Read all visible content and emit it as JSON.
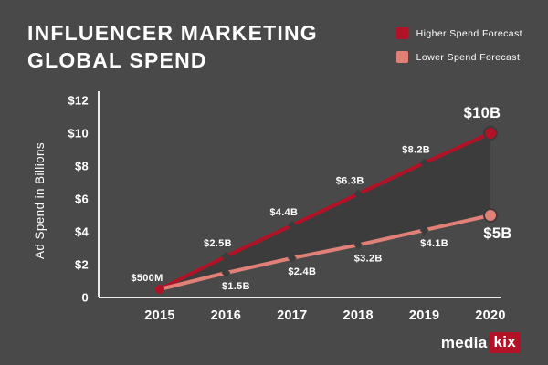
{
  "title_line1": "INFLUENCER MARKETING",
  "title_line2": "GLOBAL SPEND",
  "legend": {
    "items": [
      {
        "label": "Higher Spend Forecast",
        "color": "#b11226"
      },
      {
        "label": "Lower Spend Forecast",
        "color": "#e08076"
      }
    ]
  },
  "chart_data": {
    "type": "line",
    "title": "Influencer Marketing Global Spend",
    "categories": [
      "2015",
      "2016",
      "2017",
      "2018",
      "2019",
      "2020"
    ],
    "series": [
      {
        "name": "Higher Spend Forecast",
        "color": "#b11226",
        "values": [
          0.5,
          2.5,
          4.4,
          6.3,
          8.2,
          10
        ],
        "labels": [
          "$500M",
          "$2.5B",
          "$4.4B",
          "$6.3B",
          "$8.2B",
          "$10B"
        ]
      },
      {
        "name": "Lower Spend Forecast",
        "color": "#e08076",
        "values": [
          0.5,
          1.5,
          2.4,
          3.2,
          4.1,
          5
        ],
        "labels": [
          "",
          "$1.5B",
          "$2.4B",
          "$3.2B",
          "$4.1B",
          "$5B"
        ]
      }
    ],
    "xlabel": "",
    "ylabel": "Ad Spend in Billions",
    "ylim": [
      0,
      12
    ],
    "yticks": [
      0,
      2,
      4,
      6,
      8,
      10,
      12
    ],
    "ytick_labels": [
      "0",
      "$2",
      "$4",
      "$6",
      "$8",
      "$10",
      "$12"
    ],
    "grid": false,
    "legend_position": "top-right",
    "fill_between_series": true,
    "colors": {
      "background": "#4a4949",
      "area_fill": "#3c3c3c",
      "axis": "#eceaea",
      "marker": "#3b3b3b",
      "text": "#ffffff"
    }
  },
  "logo": {
    "media": "media",
    "kix": "kix"
  }
}
